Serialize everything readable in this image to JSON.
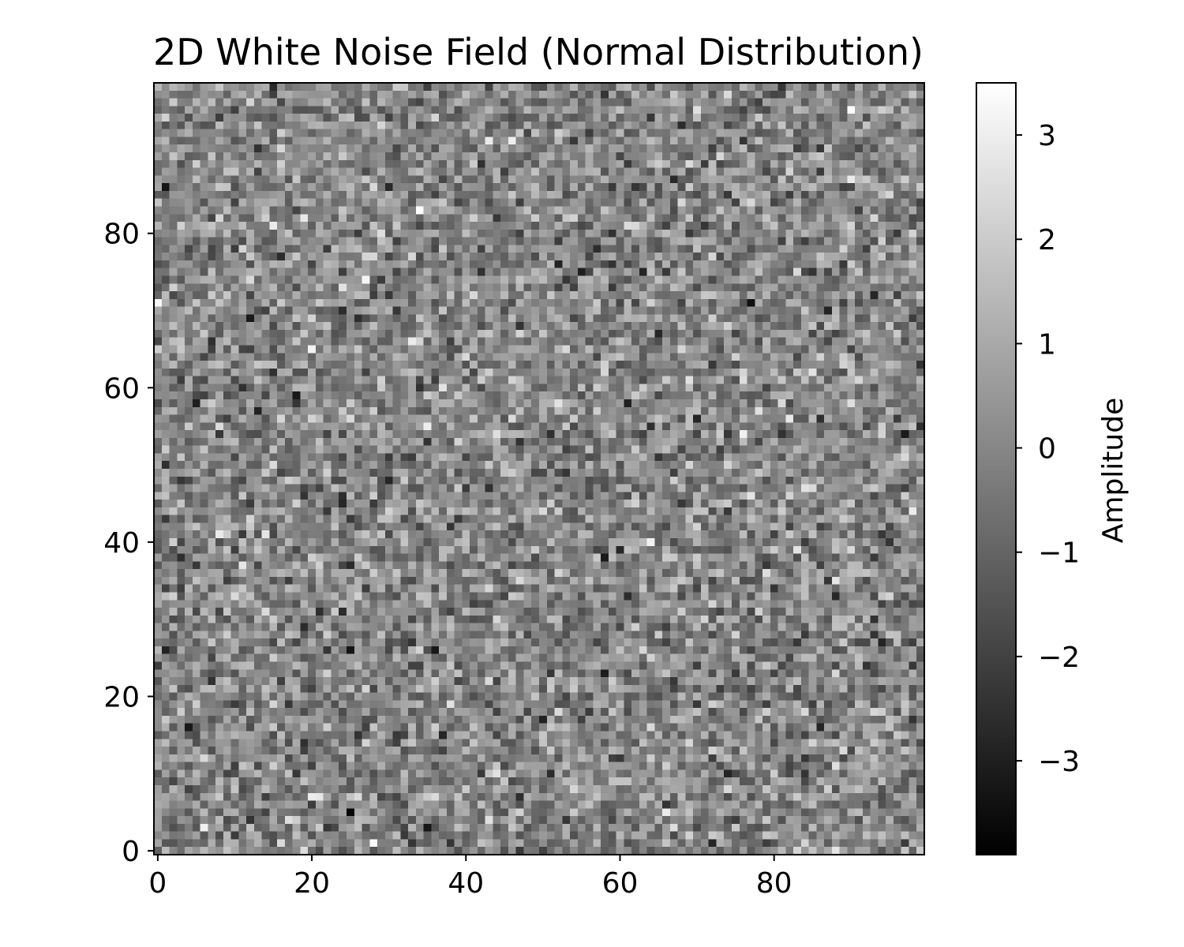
{
  "chart_data": {
    "type": "heatmap",
    "title": "2D White Noise Field (Normal Distribution)",
    "xlabel": "",
    "ylabel": "",
    "grid": false,
    "distribution": "normal",
    "mean": 0,
    "std": 1,
    "grid_size": [
      100,
      100
    ],
    "xlim": [
      -0.5,
      99.5
    ],
    "ylim": [
      -0.5,
      99.5
    ],
    "x_ticks": [
      0,
      20,
      40,
      60,
      80
    ],
    "y_ticks": [
      0,
      20,
      40,
      60,
      80
    ],
    "x_tick_labels": [
      "0",
      "20",
      "40",
      "60",
      "80"
    ],
    "y_tick_labels": [
      "0",
      "20",
      "40",
      "60",
      "80"
    ],
    "colormap": "gray",
    "colormap_low": "#000000",
    "colormap_high": "#ffffff",
    "colorbar": {
      "label": "Amplitude",
      "vmin": -3.9,
      "vmax": 3.5,
      "ticks": [
        -3,
        -2,
        -1,
        0,
        1,
        2,
        3
      ],
      "tick_labels": [
        "−3",
        "−2",
        "−1",
        "0",
        "1",
        "2",
        "3"
      ]
    }
  }
}
